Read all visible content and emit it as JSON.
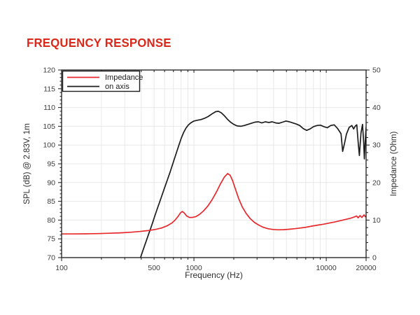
{
  "page": {
    "title": "FREQUENCY RESPONSE",
    "title_color": "#d9291c",
    "background": "#ffffff"
  },
  "chart_data": {
    "type": "line",
    "title": "FREQUENCY RESPONSE",
    "grid": true,
    "grid_color": "#e8e8e8",
    "axis_color": "#1a1a1a",
    "tick_label_color": "#3c3c3c",
    "x_axis": {
      "label": "Frequency (Hz)",
      "scale": "log",
      "min": 100,
      "max": 20000,
      "tick_labels": [
        100,
        500,
        1000,
        10000,
        20000
      ]
    },
    "y_axis_left": {
      "label": "SPL (dB) @ 2.83V, 1m",
      "min": 70,
      "max": 120,
      "major_step": 5,
      "minor_step": 1,
      "ticks": [
        70,
        75,
        80,
        85,
        90,
        95,
        100,
        105,
        110,
        115,
        120
      ]
    },
    "y_axis_right": {
      "label": "Impedance (Ohm)",
      "min": 0,
      "max": 50,
      "major_step": 10,
      "minor_step": 2,
      "ticks": [
        0,
        10,
        20,
        30,
        40,
        50
      ]
    },
    "legend": {
      "position": "top-left",
      "entries": [
        {
          "label": "Impedance",
          "color": "#e8282c"
        },
        {
          "label": "on axis",
          "color": "#1d1d1d"
        }
      ]
    },
    "series": [
      {
        "name": "on axis",
        "axis": "left",
        "unit": "dB",
        "color": "#1d1d1d",
        "points": [
          [
            392,
            69.6
          ],
          [
            400,
            70.6
          ],
          [
            412,
            71.9
          ],
          [
            425,
            73.3
          ],
          [
            440,
            74.8
          ],
          [
            455,
            76.3
          ],
          [
            470,
            77.7
          ],
          [
            487,
            79.3
          ],
          [
            505,
            81.0
          ],
          [
            525,
            82.7
          ],
          [
            548,
            84.6
          ],
          [
            572,
            86.5
          ],
          [
            600,
            88.6
          ],
          [
            630,
            90.7
          ],
          [
            662,
            92.9
          ],
          [
            695,
            95.2
          ],
          [
            730,
            97.5
          ],
          [
            765,
            99.7
          ],
          [
            800,
            101.7
          ],
          [
            835,
            103.3
          ],
          [
            870,
            104.5
          ],
          [
            905,
            105.3
          ],
          [
            945,
            105.9
          ],
          [
            1000,
            106.4
          ],
          [
            1060,
            106.6
          ],
          [
            1130,
            106.8
          ],
          [
            1200,
            107.1
          ],
          [
            1280,
            107.6
          ],
          [
            1370,
            108.3
          ],
          [
            1460,
            108.9
          ],
          [
            1530,
            109.0
          ],
          [
            1610,
            108.6
          ],
          [
            1700,
            107.8
          ],
          [
            1790,
            106.9
          ],
          [
            1890,
            106.1
          ],
          [
            2000,
            105.5
          ],
          [
            2120,
            105.1
          ],
          [
            2260,
            105.0
          ],
          [
            2400,
            105.2
          ],
          [
            2560,
            105.5
          ],
          [
            2720,
            105.8
          ],
          [
            2890,
            106.1
          ],
          [
            3070,
            106.2
          ],
          [
            3260,
            105.9
          ],
          [
            3460,
            106.2
          ],
          [
            3680,
            106.0
          ],
          [
            3900,
            106.2
          ],
          [
            4150,
            105.9
          ],
          [
            4400,
            105.8
          ],
          [
            4670,
            106.1
          ],
          [
            4960,
            106.4
          ],
          [
            5270,
            106.2
          ],
          [
            5590,
            105.9
          ],
          [
            5940,
            105.6
          ],
          [
            6300,
            105.2
          ],
          [
            6690,
            104.4
          ],
          [
            7100,
            103.9
          ],
          [
            7540,
            104.3
          ],
          [
            8010,
            104.9
          ],
          [
            8500,
            105.2
          ],
          [
            9030,
            105.3
          ],
          [
            9580,
            104.9
          ],
          [
            10180,
            104.6
          ],
          [
            10800,
            105.2
          ],
          [
            11470,
            105.4
          ],
          [
            12180,
            104.4
          ],
          [
            12930,
            103.0
          ],
          [
            13300,
            98.3
          ],
          [
            13700,
            100.2
          ],
          [
            14200,
            102.9
          ],
          [
            14900,
            104.7
          ],
          [
            15600,
            105.2
          ],
          [
            16100,
            104.3
          ],
          [
            16600,
            105.1
          ],
          [
            17000,
            105.4
          ],
          [
            17500,
            100.0
          ],
          [
            17800,
            97.2
          ],
          [
            18300,
            103.2
          ],
          [
            18800,
            105.5
          ],
          [
            19200,
            100.5
          ],
          [
            19400,
            96.3
          ],
          [
            19700,
            101.0
          ],
          [
            20000,
            104.7
          ]
        ]
      },
      {
        "name": "Impedance",
        "axis": "right",
        "unit": "Ohm",
        "color": "#e8282c",
        "points": [
          [
            100,
            6.3
          ],
          [
            125,
            6.3
          ],
          [
            155,
            6.35
          ],
          [
            190,
            6.4
          ],
          [
            230,
            6.5
          ],
          [
            280,
            6.6
          ],
          [
            330,
            6.75
          ],
          [
            390,
            6.95
          ],
          [
            450,
            7.2
          ],
          [
            510,
            7.5
          ],
          [
            570,
            7.9
          ],
          [
            630,
            8.5
          ],
          [
            680,
            9.2
          ],
          [
            720,
            10.0
          ],
          [
            760,
            11.0
          ],
          [
            790,
            11.9
          ],
          [
            815,
            12.3
          ],
          [
            845,
            11.9
          ],
          [
            880,
            11.1
          ],
          [
            925,
            10.7
          ],
          [
            975,
            10.7
          ],
          [
            1030,
            10.9
          ],
          [
            1100,
            11.5
          ],
          [
            1180,
            12.4
          ],
          [
            1270,
            13.7
          ],
          [
            1370,
            15.4
          ],
          [
            1480,
            17.5
          ],
          [
            1590,
            19.7
          ],
          [
            1700,
            21.5
          ],
          [
            1800,
            22.4
          ],
          [
            1880,
            21.9
          ],
          [
            1960,
            20.5
          ],
          [
            2060,
            18.2
          ],
          [
            2180,
            15.7
          ],
          [
            2320,
            13.5
          ],
          [
            2480,
            11.8
          ],
          [
            2660,
            10.4
          ],
          [
            2860,
            9.4
          ],
          [
            3080,
            8.7
          ],
          [
            3330,
            8.1
          ],
          [
            3620,
            7.7
          ],
          [
            3950,
            7.5
          ],
          [
            4330,
            7.4
          ],
          [
            4760,
            7.45
          ],
          [
            5240,
            7.55
          ],
          [
            5780,
            7.7
          ],
          [
            6380,
            7.9
          ],
          [
            7050,
            8.1
          ],
          [
            7790,
            8.4
          ],
          [
            8610,
            8.65
          ],
          [
            9520,
            8.9
          ],
          [
            10500,
            9.2
          ],
          [
            11600,
            9.5
          ],
          [
            12800,
            9.85
          ],
          [
            14100,
            10.2
          ],
          [
            15300,
            10.5
          ],
          [
            16200,
            10.8
          ],
          [
            16900,
            11.1
          ],
          [
            17400,
            10.6
          ],
          [
            18000,
            11.2
          ],
          [
            18600,
            10.7
          ],
          [
            19300,
            11.4
          ],
          [
            19700,
            10.9
          ],
          [
            20000,
            11.1
          ]
        ]
      }
    ]
  }
}
